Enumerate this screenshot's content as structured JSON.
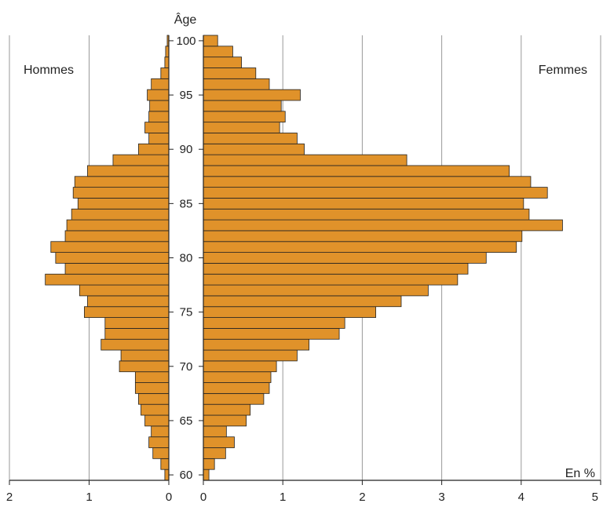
{
  "chart_data": {
    "type": "bar",
    "orientation": "horizontal-pyramid",
    "title": "Âge",
    "unit_label": "En %",
    "left_label": "Hommes",
    "right_label": "Femmes",
    "grid": true,
    "bar_color": "#E0922A",
    "bar_stroke": "#222222",
    "ages": [
      60,
      61,
      62,
      63,
      64,
      65,
      66,
      67,
      68,
      69,
      70,
      71,
      72,
      73,
      74,
      75,
      76,
      77,
      78,
      79,
      80,
      81,
      82,
      83,
      84,
      85,
      86,
      87,
      88,
      89,
      90,
      91,
      92,
      93,
      94,
      95,
      96,
      97,
      98,
      99,
      100
    ],
    "age_ticks": [
      60,
      65,
      70,
      75,
      80,
      85,
      90,
      95,
      100
    ],
    "series": [
      {
        "name": "Hommes",
        "xlim": [
          0,
          2
        ],
        "ticks": [
          2,
          1,
          0
        ],
        "values": [
          0.05,
          0.1,
          0.2,
          0.25,
          0.22,
          0.3,
          0.35,
          0.38,
          0.42,
          0.42,
          0.62,
          0.6,
          0.85,
          0.8,
          0.8,
          1.06,
          1.02,
          1.12,
          1.55,
          1.3,
          1.42,
          1.48,
          1.3,
          1.28,
          1.22,
          1.14,
          1.2,
          1.18,
          1.02,
          0.7,
          0.38,
          0.25,
          0.3,
          0.25,
          0.24,
          0.27,
          0.22,
          0.1,
          0.05,
          0.04,
          0.02
        ]
      },
      {
        "name": "Femmes",
        "xlim": [
          0,
          5
        ],
        "ticks": [
          0,
          1,
          2,
          3,
          4,
          5
        ],
        "values": [
          0.07,
          0.14,
          0.28,
          0.39,
          0.29,
          0.54,
          0.59,
          0.76,
          0.83,
          0.85,
          0.92,
          1.18,
          1.33,
          1.71,
          1.78,
          2.17,
          2.49,
          2.83,
          3.2,
          3.33,
          3.56,
          3.94,
          4.01,
          4.52,
          4.1,
          4.03,
          4.33,
          4.12,
          3.85,
          2.56,
          1.27,
          1.18,
          0.96,
          1.03,
          0.98,
          1.22,
          0.83,
          0.66,
          0.48,
          0.37,
          0.18
        ]
      }
    ]
  }
}
